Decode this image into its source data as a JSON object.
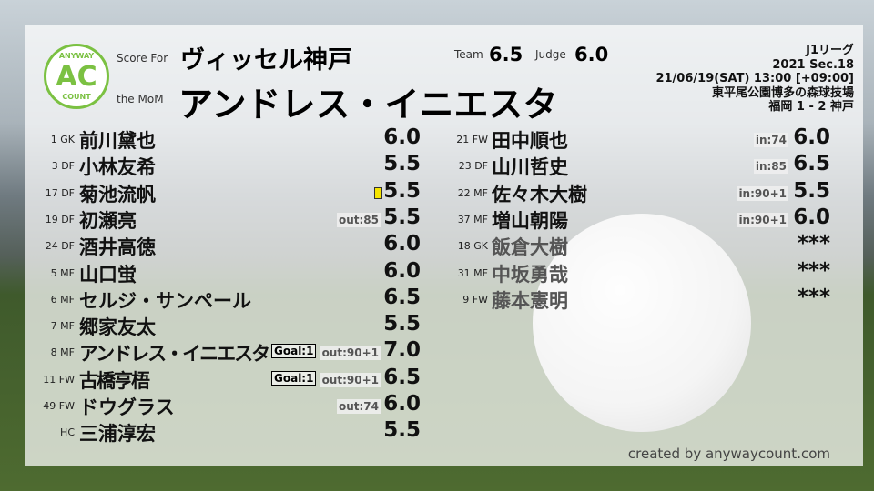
{
  "header": {
    "score_for_label": "Score For",
    "team": "ヴィッセル神戸",
    "mom_label": "the MoM",
    "mom": "アンドレス・イニエスタ",
    "team_label": "Team",
    "team_score": "6.5",
    "judge_label": "Judge",
    "judge_score": "6.0",
    "logo": {
      "top": "ANYWAY",
      "mid": "AC",
      "bottom": "COUNT"
    }
  },
  "match": {
    "league": "J1リーグ",
    "section": "2021 Sec.18",
    "datetime": "21/06/19(SAT) 13:00 [+09:00]",
    "venue": "東平尾公園博多の森球技場",
    "result": "福岡 1 - 2 神戸"
  },
  "colors": {
    "logo": "#7bc142",
    "card": "#f5e400"
  },
  "starters": [
    {
      "num": "1 GK",
      "name": "前川黛也",
      "score": "6.0"
    },
    {
      "num": "3 DF",
      "name": "小林友希",
      "score": "5.5"
    },
    {
      "num": "17 DF",
      "name": "菊池流帆",
      "score": "5.5",
      "card": "yellow"
    },
    {
      "num": "19 DF",
      "name": "初瀬亮",
      "score": "5.5",
      "sub": "out:85"
    },
    {
      "num": "24 DF",
      "name": "酒井高徳",
      "score": "6.0"
    },
    {
      "num": "5 MF",
      "name": "山口蛍",
      "score": "6.0"
    },
    {
      "num": "6 MF",
      "name": "セルジ・サンペール",
      "score": "6.5"
    },
    {
      "num": "7 MF",
      "name": "郷家友太",
      "score": "5.5"
    },
    {
      "num": "8 MF",
      "name": "アンドレス・イニエスタ",
      "score": "7.0",
      "goal": "Goal:1",
      "sub": "out:90+1"
    },
    {
      "num": "11 FW",
      "name": "古橋亨梧",
      "score": "6.5",
      "goal": "Goal:1",
      "sub": "out:90+1"
    },
    {
      "num": "49 FW",
      "name": "ドウグラス",
      "score": "6.0",
      "sub": "out:74"
    },
    {
      "num": "HC",
      "name": "三浦淳宏",
      "score": "5.5"
    }
  ],
  "subs": [
    {
      "num": "21 FW",
      "name": "田中順也",
      "score": "6.0",
      "sub": "in:74"
    },
    {
      "num": "23 DF",
      "name": "山川哲史",
      "score": "6.5",
      "sub": "in:85"
    },
    {
      "num": "22 MF",
      "name": "佐々木大樹",
      "score": "5.5",
      "sub": "in:90+1"
    },
    {
      "num": "37 MF",
      "name": "増山朝陽",
      "score": "6.0",
      "sub": "in:90+1"
    },
    {
      "num": "18 GK",
      "name": "飯倉大樹",
      "score": "***",
      "dim": true
    },
    {
      "num": "31 MF",
      "name": "中坂勇哉",
      "score": "***",
      "dim": true
    },
    {
      "num": "9 FW",
      "name": "藤本憲明",
      "score": "***",
      "dim": true
    }
  ],
  "credit": "created by anywaycount.com"
}
